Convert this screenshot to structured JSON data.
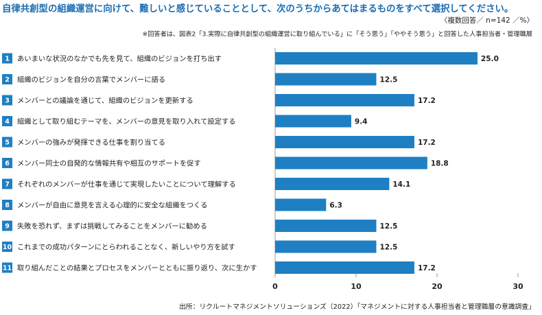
{
  "chart_data": {
    "type": "bar",
    "orientation": "horizontal",
    "title": "自律共創型の組織運営に向けて、難しいと感じていることとして、次のうちからあてはまるものをすべて選択してください。",
    "subtitle": "〈複数回答／ n=142 ／%〉",
    "note": "※回答者は、図表2「3.実際に自律共創型の組織運営に取り組んでいる」に「そう思う」「ややそう思う」と回答した人事担当者・管理職層",
    "source": "出所：リクルートマネジメントソリューションズ（2022）「マネジメントに対する人事担当者と管理職層の意識調査」",
    "category_numbers": [
      "1",
      "2",
      "3",
      "4",
      "5",
      "6",
      "7",
      "8",
      "9",
      "10",
      "11"
    ],
    "categories": [
      "あいまいな状況のなかでも先を見て、組織のビジョンを打ち出す",
      "組織のビジョンを自分の言葉でメンバーに語る",
      "メンバーとの議論を通じて、組織のビジョンを更新する",
      "組織として取り組むテーマを、メンバーの意見を取り入れて設定する",
      "メンバーの強みが発揮できる仕事を割り当てる",
      "メンバー同士の自発的な情報共有や相互のサポートを促す",
      "それぞれのメンバーが仕事を通じて実現したいことについて理解する",
      "メンバーが自由に意見を言える心理的に安全な組織をつくる",
      "失敗を恐れず、まずは挑戦してみることをメンバーに勧める",
      "これまでの成功パターンにとらわれることなく、新しいやり方を試す",
      "取り組んだことの結果とプロセスをメンバーとともに振り返り、次に生かす"
    ],
    "values": [
      25.0,
      12.5,
      17.2,
      9.4,
      17.2,
      18.8,
      14.1,
      6.3,
      12.5,
      12.5,
      17.2
    ],
    "value_labels": [
      "25.0",
      "12.5",
      "17.2",
      "9.4",
      "17.2",
      "18.8",
      "14.1",
      "6.3",
      "12.5",
      "12.5",
      "17.2"
    ],
    "color": "#1f7fc3",
    "xlim": [
      0,
      30
    ],
    "xticks": [
      0,
      10,
      20,
      30
    ]
  }
}
